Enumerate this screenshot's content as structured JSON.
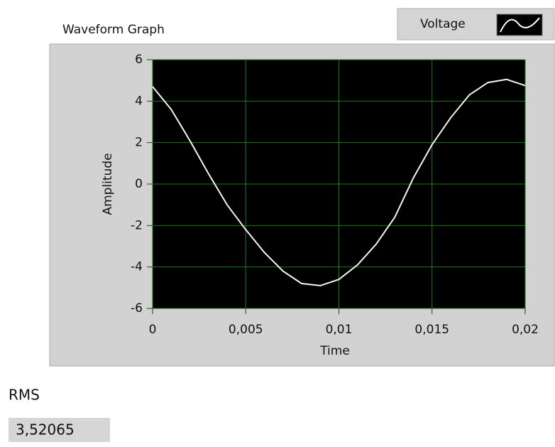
{
  "chart_data": {
    "type": "line",
    "title": "Waveform Graph",
    "xlabel": "Time",
    "ylabel": "Amplitude",
    "x": [
      0,
      0.001,
      0.002,
      0.003,
      0.004,
      0.005,
      0.006,
      0.007,
      0.008,
      0.009,
      0.01,
      0.011,
      0.012,
      0.013,
      0.014,
      0.015,
      0.016,
      0.017,
      0.018,
      0.019,
      0.02
    ],
    "series": [
      {
        "name": "Voltage",
        "color": "#f4f4f0",
        "values": [
          4.7,
          3.6,
          2.1,
          0.5,
          -1.0,
          -2.2,
          -3.3,
          -4.2,
          -4.8,
          -4.9,
          -4.6,
          -3.9,
          -2.9,
          -1.6,
          0.3,
          1.9,
          3.2,
          4.3,
          4.9,
          5.05,
          4.75
        ]
      }
    ],
    "xlim": [
      0,
      0.02
    ],
    "xticks": [
      0,
      {
        "value": 0.005,
        "label": "0,005"
      },
      {
        "value": 0.01,
        "label": "0,01"
      },
      {
        "value": 0.015,
        "label": "0,015"
      },
      {
        "value": 0.02,
        "label": "0,02"
      }
    ],
    "ylim": [
      -6,
      6
    ],
    "yticks": [
      6,
      4,
      2,
      0,
      -2,
      -4,
      -6
    ],
    "grid": true,
    "grid_color": "#1f7a1f",
    "plot_background": "#000000"
  },
  "rms": {
    "label": "RMS",
    "value": "3,52065"
  }
}
